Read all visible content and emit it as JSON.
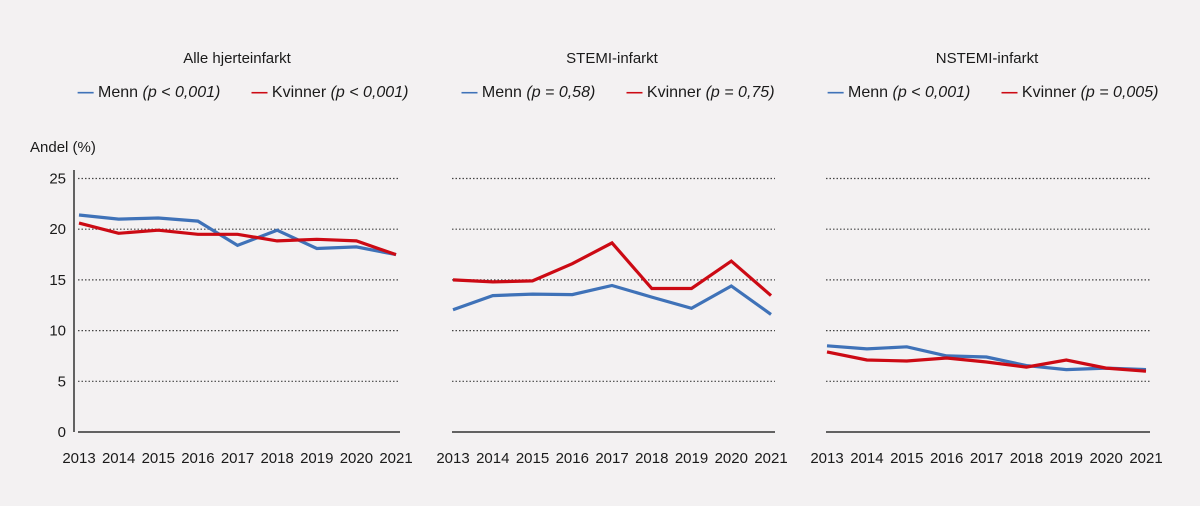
{
  "ylabel": "Andel (%)",
  "colors": {
    "menn": "#3f72b8",
    "kvinner": "#cc0a14",
    "background": "#f3f1f2"
  },
  "chart_data": [
    {
      "type": "line",
      "title": "Alle hjerteinfarkt",
      "ylabel": "Andel (%)",
      "x": [
        2013,
        2014,
        2015,
        2016,
        2017,
        2018,
        2019,
        2020,
        2021
      ],
      "ylim": [
        0,
        25
      ],
      "yticks": [
        0,
        5,
        10,
        15,
        20,
        25
      ],
      "grid": true,
      "legend": "top",
      "series": [
        {
          "name": "Menn",
          "note": "(p < 0,001)",
          "values": [
            21.4,
            21.0,
            21.1,
            20.8,
            18.4,
            19.9,
            18.1,
            18.25,
            17.5
          ]
        },
        {
          "name": "Kvinner",
          "note": "(p < 0,001)",
          "values": [
            20.6,
            19.6,
            19.9,
            19.5,
            19.5,
            18.85,
            19.0,
            18.85,
            17.5
          ]
        }
      ]
    },
    {
      "type": "line",
      "title": "STEMI-infarkt",
      "x": [
        2013,
        2014,
        2015,
        2016,
        2017,
        2018,
        2019,
        2020,
        2021
      ],
      "ylim": [
        0,
        25
      ],
      "yticks": [
        0,
        5,
        10,
        15,
        20,
        25
      ],
      "grid": true,
      "legend": "top",
      "series": [
        {
          "name": "Menn",
          "note": "(p = 0,58)",
          "values": [
            12.05,
            13.45,
            13.6,
            13.55,
            14.45,
            13.3,
            12.2,
            14.4,
            11.6
          ]
        },
        {
          "name": "Kvinner",
          "note": "(p = 0,75)",
          "values": [
            15.0,
            14.8,
            14.9,
            16.6,
            18.65,
            14.15,
            14.15,
            16.85,
            13.45
          ]
        }
      ]
    },
    {
      "type": "line",
      "title": "NSTEMI-infarkt",
      "x": [
        2013,
        2014,
        2015,
        2016,
        2017,
        2018,
        2019,
        2020,
        2021
      ],
      "ylim": [
        0,
        25
      ],
      "yticks": [
        0,
        5,
        10,
        15,
        20,
        25
      ],
      "grid": true,
      "legend": "top",
      "series": [
        {
          "name": "Menn",
          "note": "(p < 0,001)",
          "values": [
            8.5,
            8.2,
            8.4,
            7.5,
            7.4,
            6.55,
            6.15,
            6.3,
            6.15
          ]
        },
        {
          "name": "Kvinner",
          "note": "(p = 0,005)",
          "values": [
            7.9,
            7.1,
            7.0,
            7.3,
            6.9,
            6.4,
            7.1,
            6.3,
            6.0
          ]
        }
      ]
    }
  ]
}
